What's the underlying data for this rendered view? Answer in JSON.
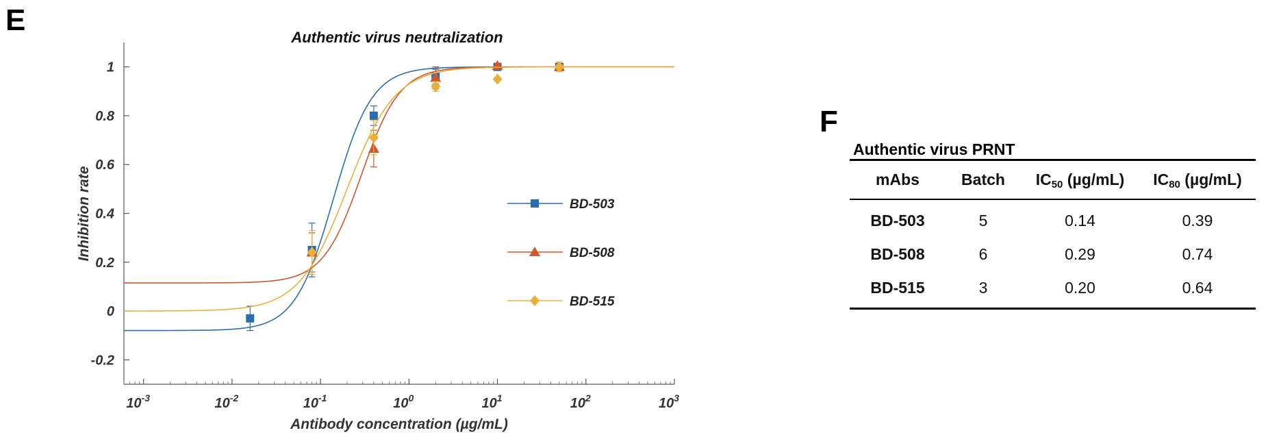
{
  "panels": {
    "left_letter": "E",
    "right_letter": "F"
  },
  "chart_data": {
    "type": "line",
    "title": "Authentic virus neutralization",
    "xlabel": "Antibody concentration (µg/mL)",
    "ylabel": "Inhibition rate",
    "xscale": "log",
    "xlim": [
      0.0006,
      1000
    ],
    "ylim": [
      -0.3,
      1.1
    ],
    "x_ticks": [
      {
        "base": "10",
        "exp": "-3",
        "value": 0.001
      },
      {
        "base": "10",
        "exp": "-2",
        "value": 0.01
      },
      {
        "base": "10",
        "exp": "-1",
        "value": 0.1
      },
      {
        "base": "10",
        "exp": "0",
        "value": 1
      },
      {
        "base": "10",
        "exp": "1",
        "value": 10
      },
      {
        "base": "10",
        "exp": "2",
        "value": 100
      },
      {
        "base": "10",
        "exp": "3",
        "value": 1000
      }
    ],
    "y_ticks": [
      {
        "label": "-0.2",
        "value": -0.2
      },
      {
        "label": "0",
        "value": 0
      },
      {
        "label": "0.2",
        "value": 0.2
      },
      {
        "label": "0.4",
        "value": 0.4
      },
      {
        "label": "0.6",
        "value": 0.6
      },
      {
        "label": "0.8",
        "value": 0.8
      },
      {
        "label": "1",
        "value": 1
      }
    ],
    "legend_position": "right",
    "series": [
      {
        "name": "BD-503",
        "color": "#2a6db5",
        "marker": "square",
        "points": [
          {
            "x": 0.016,
            "y": -0.03,
            "err": 0.05
          },
          {
            "x": 0.08,
            "y": 0.25,
            "err": 0.11
          },
          {
            "x": 0.4,
            "y": 0.8,
            "err": 0.04
          },
          {
            "x": 2,
            "y": 0.96,
            "err": 0.03
          },
          {
            "x": 10,
            "y": 1.0,
            "err": 0.01
          },
          {
            "x": 50,
            "y": 1.0,
            "err": 0.01
          }
        ],
        "fit": {
          "bottom": -0.08,
          "top": 1.0,
          "ec50": 0.14,
          "hill": 2.0
        }
      },
      {
        "name": "BD-508",
        "color": "#d0562b",
        "marker": "triangle",
        "points": [
          {
            "x": 0.08,
            "y": 0.24,
            "err": 0.08
          },
          {
            "x": 0.4,
            "y": 0.665,
            "err": 0.075
          },
          {
            "x": 2,
            "y": 0.955,
            "err": 0.045
          },
          {
            "x": 10,
            "y": 1.005,
            "err": 0.01
          },
          {
            "x": 50,
            "y": 1.0,
            "err": 0.01
          }
        ],
        "fit": {
          "bottom": 0.115,
          "top": 1.0,
          "ec50": 0.29,
          "hill": 2.0
        }
      },
      {
        "name": "BD-515",
        "color": "#e8b13c",
        "marker": "diamond",
        "points": [
          {
            "x": 0.08,
            "y": 0.24,
            "err": 0.09
          },
          {
            "x": 0.4,
            "y": 0.71,
            "err": 0.07
          },
          {
            "x": 2,
            "y": 0.92,
            "err": 0.02
          },
          {
            "x": 10,
            "y": 0.95,
            "err": 0.0
          },
          {
            "x": 50,
            "y": 1.0,
            "err": 0.02
          }
        ],
        "fit": {
          "bottom": 0.0,
          "top": 1.0,
          "ec50": 0.2,
          "hill": 1.6
        }
      }
    ]
  },
  "table": {
    "caption": "Authentic virus PRNT",
    "headers": {
      "mabs": "mAbs",
      "batch": "Batch",
      "ic50_prefix": "IC",
      "ic50_sub": "50",
      "ic50_unit": " (µg/mL)",
      "ic80_prefix": "IC",
      "ic80_sub": "80",
      "ic80_unit": " (µg/mL)"
    },
    "rows": [
      {
        "name": "BD-503",
        "batch": "5",
        "ic50": "0.14",
        "ic80": "0.39"
      },
      {
        "name": "BD-508",
        "batch": "6",
        "ic50": "0.29",
        "ic80": "0.74"
      },
      {
        "name": "BD-515",
        "batch": "3",
        "ic50": "0.20",
        "ic80": "0.64"
      }
    ]
  }
}
